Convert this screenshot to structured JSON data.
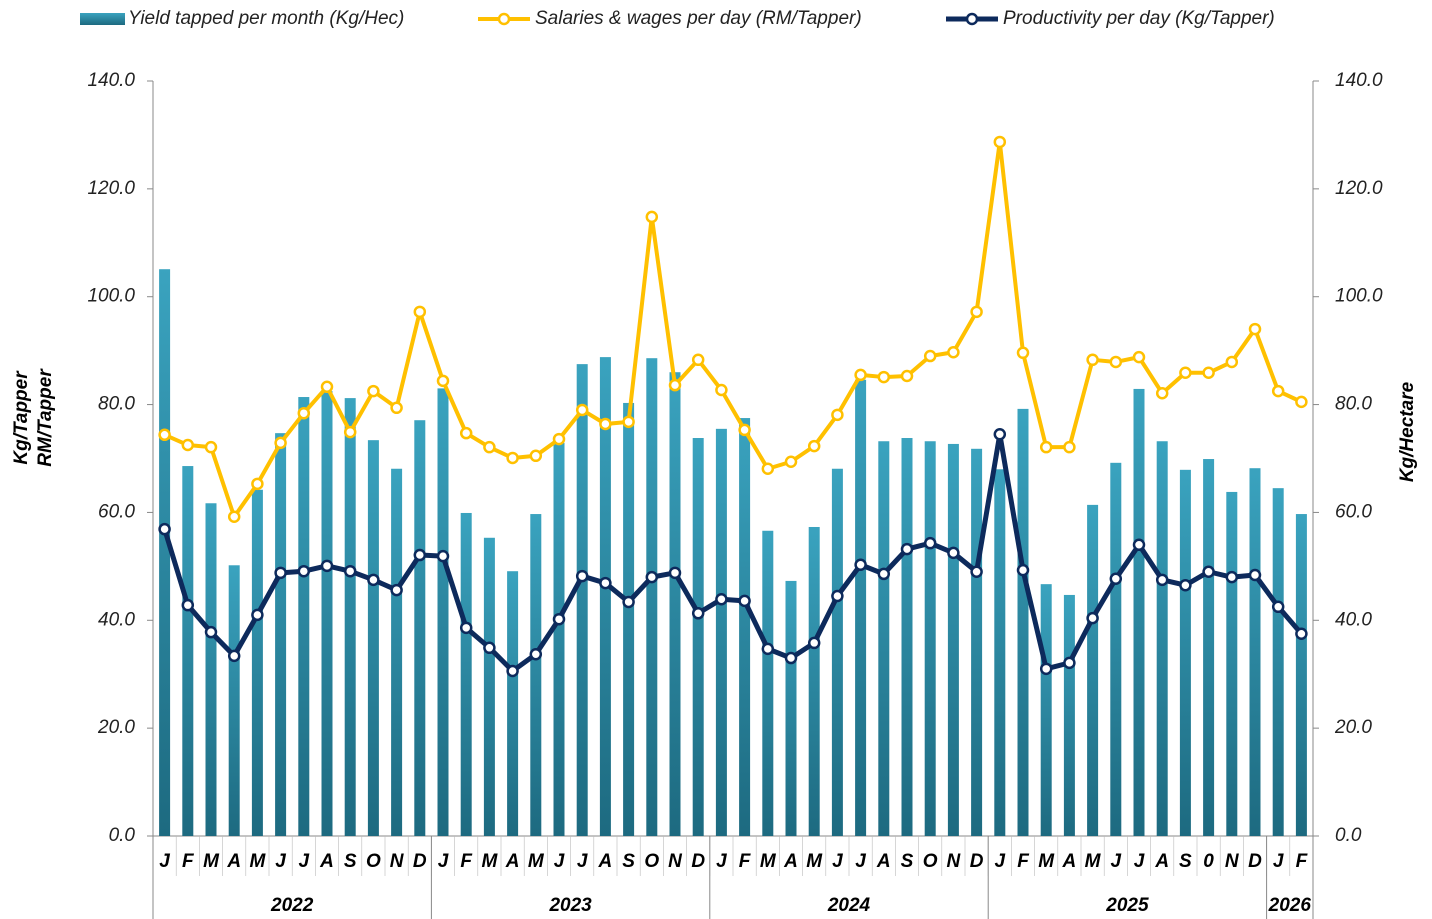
{
  "chart_data": {
    "type": "bar-line",
    "categories": [
      "J",
      "F",
      "M",
      "A",
      "M",
      "J",
      "J",
      "A",
      "S",
      "O",
      "N",
      "D",
      "J",
      "F",
      "M",
      "A",
      "M",
      "J",
      "J",
      "A",
      "S",
      "O",
      "N",
      "D",
      "J",
      "F",
      "M",
      "A",
      "M",
      "J",
      "J",
      "A",
      "S",
      "O",
      "N",
      "D",
      "J",
      "F",
      "M",
      "A",
      "M",
      "J",
      "J",
      "A",
      "S",
      "0",
      "N",
      "D",
      "J",
      "F"
    ],
    "groups": [
      {
        "label": "2022",
        "count": 12
      },
      {
        "label": "2023",
        "count": 12
      },
      {
        "label": "2024",
        "count": 12
      },
      {
        "label": "2025",
        "count": 12
      },
      {
        "label": "2026",
        "count": 2
      }
    ],
    "series": [
      {
        "name": "Yield tapped per month (Kg/Hec)",
        "type": "bar",
        "axis": "y2",
        "color": "#2f8ca8",
        "values": [
          105.1,
          68.6,
          61.7,
          50.2,
          64.2,
          74.7,
          81.4,
          82.5,
          81.2,
          73.4,
          68.1,
          77.1,
          83.0,
          59.9,
          55.3,
          49.1,
          59.7,
          72.9,
          87.5,
          88.8,
          80.3,
          88.6,
          86.0,
          73.8,
          75.5,
          77.5,
          56.6,
          47.3,
          57.3,
          68.1,
          84.6,
          73.2,
          73.8,
          73.2,
          72.7,
          71.8,
          68.0,
          79.2,
          46.7,
          44.7,
          61.4,
          69.2,
          82.9,
          73.2,
          67.9,
          69.9,
          63.8,
          68.2,
          64.5,
          59.7
        ]
      },
      {
        "name": "Salaries & wages per day (RM/Tapper)",
        "type": "line",
        "color": "#ffc000",
        "values": [
          74.4,
          72.5,
          72.1,
          59.2,
          65.3,
          72.9,
          78.4,
          83.3,
          74.9,
          82.5,
          79.4,
          97.2,
          84.4,
          74.7,
          72.1,
          70.1,
          70.5,
          73.6,
          79.0,
          76.4,
          76.8,
          114.8,
          83.6,
          88.3,
          82.7,
          75.3,
          68.1,
          69.4,
          72.3,
          78.1,
          85.5,
          85.1,
          85.3,
          89.0,
          89.7,
          97.2,
          128.7,
          89.6,
          72.1,
          72.1,
          88.3,
          87.9,
          88.8,
          82.1,
          85.9,
          85.9,
          87.9,
          94.0,
          82.5,
          80.5
        ]
      },
      {
        "name": "Productivity per day (Kg/Tapper)",
        "type": "line",
        "color": "#0d2a5c",
        "values": [
          56.9,
          42.8,
          37.8,
          33.4,
          41.0,
          48.8,
          49.1,
          50.1,
          49.1,
          47.5,
          45.6,
          52.1,
          51.9,
          38.6,
          34.9,
          30.6,
          33.7,
          40.2,
          48.2,
          46.9,
          43.4,
          48.0,
          48.8,
          41.3,
          43.9,
          43.6,
          34.7,
          33.0,
          35.8,
          44.5,
          50.3,
          48.6,
          53.2,
          54.3,
          52.5,
          49.0,
          74.5,
          49.3,
          31.0,
          32.1,
          40.4,
          47.7,
          54.0,
          47.5,
          46.5,
          49.0,
          48.0,
          48.4,
          42.5,
          37.5
        ]
      }
    ],
    "ylabel": [
      "Kg/Tapper",
      "RM/Tapper"
    ],
    "y2label": "Kg/Hectare",
    "ylim": [
      0,
      140
    ],
    "yticks": [
      {
        "value": 0,
        "label": "0.0"
      },
      {
        "value": 20,
        "label": "20.0"
      },
      {
        "value": 40,
        "label": "40.0"
      },
      {
        "value": 60,
        "label": "60.0"
      },
      {
        "value": 80,
        "label": "80.0"
      },
      {
        "value": 100,
        "label": "100.0"
      },
      {
        "value": 120,
        "label": "120.0"
      },
      {
        "value": 140,
        "label": "140.0"
      }
    ],
    "y2lim": [
      0,
      140
    ],
    "y2ticks": [
      {
        "value": 0,
        "label": "0.0"
      },
      {
        "value": 20,
        "label": "20.0"
      },
      {
        "value": 40,
        "label": "40.0"
      },
      {
        "value": 60,
        "label": "60.0"
      },
      {
        "value": 80,
        "label": "80.0"
      },
      {
        "value": 100,
        "label": "100.0"
      },
      {
        "value": 120,
        "label": "120.0"
      },
      {
        "value": 140,
        "label": "140.0"
      }
    ],
    "legend": "top"
  }
}
